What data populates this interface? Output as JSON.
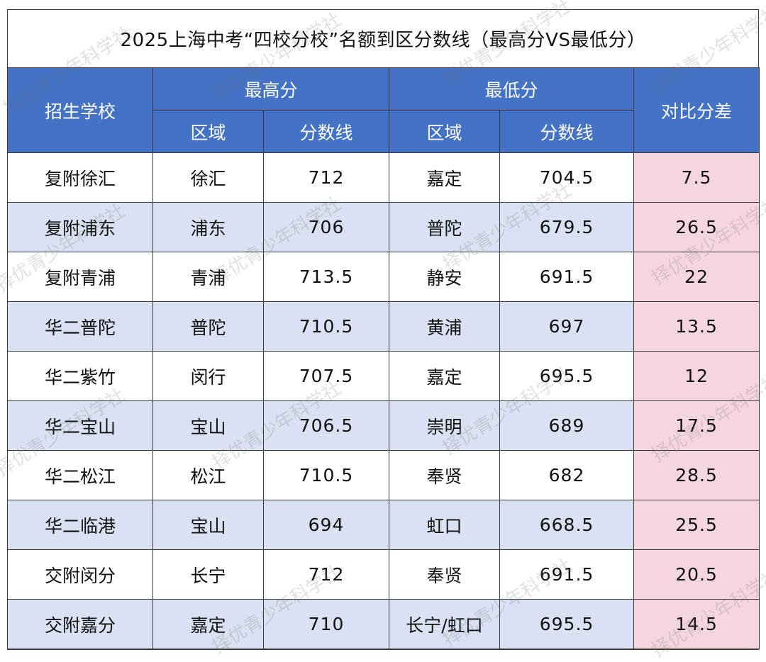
{
  "title": "2025上海中考“四校分校”名额到区分数线（最高分VS最低分）",
  "header": {
    "school": "招生学校",
    "max_group": "最高分",
    "min_group": "最低分",
    "region": "区域",
    "score": "分数线",
    "diff": "对比分差"
  },
  "rows": [
    {
      "school": "复附徐汇",
      "max_region": "徐汇",
      "max_score": "712",
      "min_region": "嘉定",
      "min_score": "704.5",
      "diff": "7.5"
    },
    {
      "school": "复附浦东",
      "max_region": "浦东",
      "max_score": "706",
      "min_region": "普陀",
      "min_score": "679.5",
      "diff": "26.5"
    },
    {
      "school": "复附青浦",
      "max_region": "青浦",
      "max_score": "713.5",
      "min_region": "静安",
      "min_score": "691.5",
      "diff": "22"
    },
    {
      "school": "华二普陀",
      "max_region": "普陀",
      "max_score": "710.5",
      "min_region": "黄浦",
      "min_score": "697",
      "diff": "13.5"
    },
    {
      "school": "华二紫竹",
      "max_region": "闵行",
      "max_score": "707.5",
      "min_region": "嘉定",
      "min_score": "695.5",
      "diff": "12"
    },
    {
      "school": "华二宝山",
      "max_region": "宝山",
      "max_score": "706.5",
      "min_region": "崇明",
      "min_score": "689",
      "diff": "17.5"
    },
    {
      "school": "华二松江",
      "max_region": "松江",
      "max_score": "710.5",
      "min_region": "奉贤",
      "min_score": "682",
      "diff": "28.5"
    },
    {
      "school": "华二临港",
      "max_region": "宝山",
      "max_score": "694",
      "min_region": "虹口",
      "min_score": "668.5",
      "diff": "25.5"
    },
    {
      "school": "交附闵分",
      "max_region": "长宁",
      "max_score": "712",
      "min_region": "奉贤",
      "min_score": "691.5",
      "diff": "20.5"
    },
    {
      "school": "交附嘉分",
      "max_region": "嘉定",
      "max_score": "710",
      "min_region": "长宁/虹口",
      "min_score": "695.5",
      "diff": "14.5"
    }
  ],
  "watermark": "择优青少年科学社",
  "colors": {
    "header_bg": "#4472c4",
    "stripe_bg": "#d9e1f2",
    "diff_bg": "#f5d6dc"
  }
}
